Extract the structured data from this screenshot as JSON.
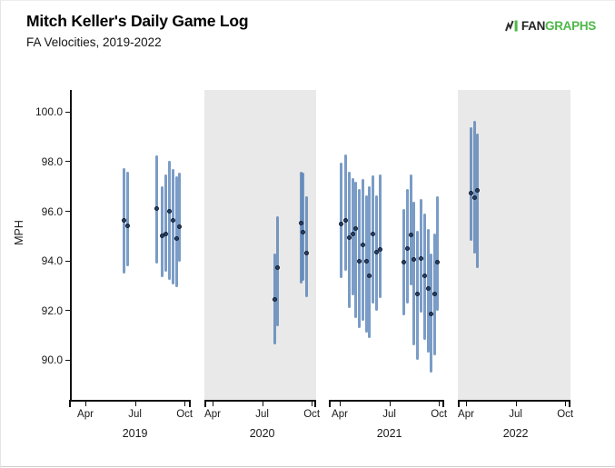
{
  "header": {
    "title": "Mitch Keller's Daily Game Log",
    "subtitle": "FA Velocities, 2019-2022",
    "logo": {
      "fan": "FAN",
      "graphs": "GRAPHS"
    }
  },
  "colors": {
    "bar": "rgba(70,118,176,0.72)",
    "dot_fill": "#2c3f61",
    "dot_border": "#0e1c33",
    "shaded_panel": "#e9e9e9",
    "axis": "#111111",
    "tick_text": "#1a1a1a",
    "logo_green": "#4db848",
    "logo_dark": "#2f2f2f"
  },
  "chart_data": {
    "type": "scatter",
    "title": "Mitch Keller's Daily Game Log",
    "subtitle": "FA Velocities, 2019-2022",
    "ylabel": "MPH",
    "ylim": [
      88.4,
      100.9
    ],
    "grid": false,
    "legend": "none",
    "yticks": [
      {
        "v": 100,
        "label": "100.0"
      },
      {
        "v": 98,
        "label": "98.0"
      },
      {
        "v": 96,
        "label": "96.0"
      },
      {
        "v": 94,
        "label": "94.0"
      },
      {
        "v": 92,
        "label": "92.0"
      },
      {
        "v": 90,
        "label": "90.0"
      }
    ],
    "month_ticks": [
      {
        "m": 4,
        "label": "Apr"
      },
      {
        "m": 7,
        "label": "Jul"
      },
      {
        "m": 10,
        "label": "Oct"
      }
    ],
    "series_meaning": "Each point: m = month position (4=Apr,7=Jul,10=Oct), avg = daily average FA velocity (dot), min/max = daily velocity range (bar), in MPH",
    "panels": [
      {
        "year": "2019",
        "shaded": false,
        "points": [
          {
            "m": 6.35,
            "avg": 95.65,
            "min": 93.5,
            "max": 97.75
          },
          {
            "m": 6.54,
            "avg": 95.42,
            "min": 93.8,
            "max": 97.6
          },
          {
            "m": 8.32,
            "avg": 96.1,
            "min": 93.9,
            "max": 98.25
          },
          {
            "m": 8.65,
            "avg": 95.0,
            "min": 93.35,
            "max": 97.0
          },
          {
            "m": 8.87,
            "avg": 95.1,
            "min": 93.55,
            "max": 97.5
          },
          {
            "m": 9.09,
            "avg": 96.0,
            "min": 93.25,
            "max": 98.05
          },
          {
            "m": 9.29,
            "avg": 95.62,
            "min": 93.05,
            "max": 97.7
          },
          {
            "m": 9.51,
            "avg": 94.9,
            "min": 92.95,
            "max": 97.4
          },
          {
            "m": 9.68,
            "avg": 95.38,
            "min": 93.95,
            "max": 97.55
          }
        ]
      },
      {
        "year": "2020",
        "shaded": true,
        "points": [
          {
            "m": 7.75,
            "avg": 92.45,
            "min": 90.65,
            "max": 94.3
          },
          {
            "m": 7.92,
            "avg": 93.72,
            "min": 91.35,
            "max": 95.8
          },
          {
            "m": 9.35,
            "avg": 95.52,
            "min": 93.1,
            "max": 97.6
          },
          {
            "m": 9.49,
            "avg": 95.15,
            "min": 93.2,
            "max": 97.55
          },
          {
            "m": 9.71,
            "avg": 94.3,
            "min": 92.55,
            "max": 96.6
          }
        ]
      },
      {
        "year": "2021",
        "shaded": false,
        "points": [
          {
            "m": 4.09,
            "avg": 95.5,
            "min": 93.3,
            "max": 97.95
          },
          {
            "m": 4.33,
            "avg": 95.65,
            "min": 93.6,
            "max": 98.3
          },
          {
            "m": 4.55,
            "avg": 94.95,
            "min": 92.1,
            "max": 97.6
          },
          {
            "m": 4.77,
            "avg": 95.1,
            "min": 92.6,
            "max": 97.35
          },
          {
            "m": 4.97,
            "avg": 95.3,
            "min": 91.7,
            "max": 97.2
          },
          {
            "m": 5.17,
            "avg": 94.0,
            "min": 91.3,
            "max": 96.9
          },
          {
            "m": 5.39,
            "avg": 94.65,
            "min": 91.6,
            "max": 97.3
          },
          {
            "m": 5.61,
            "avg": 94.0,
            "min": 91.1,
            "max": 96.65
          },
          {
            "m": 5.81,
            "avg": 93.4,
            "min": 90.9,
            "max": 97.0
          },
          {
            "m": 6.03,
            "avg": 95.1,
            "min": 92.3,
            "max": 97.45
          },
          {
            "m": 6.24,
            "avg": 94.35,
            "min": 92.0,
            "max": 96.65
          },
          {
            "m": 6.46,
            "avg": 94.45,
            "min": 92.5,
            "max": 97.5
          },
          {
            "m": 7.85,
            "avg": 93.95,
            "min": 91.8,
            "max": 96.1
          },
          {
            "m": 8.07,
            "avg": 94.5,
            "min": 92.3,
            "max": 96.9
          },
          {
            "m": 8.29,
            "avg": 95.05,
            "min": 93.0,
            "max": 97.5
          },
          {
            "m": 8.5,
            "avg": 94.05,
            "min": 90.6,
            "max": 96.4
          },
          {
            "m": 8.72,
            "avg": 92.65,
            "min": 90.0,
            "max": 95.2
          },
          {
            "m": 8.94,
            "avg": 94.1,
            "min": 91.9,
            "max": 96.5
          },
          {
            "m": 9.13,
            "avg": 93.4,
            "min": 90.8,
            "max": 95.9
          },
          {
            "m": 9.33,
            "avg": 92.9,
            "min": 90.3,
            "max": 95.3
          },
          {
            "m": 9.53,
            "avg": 91.85,
            "min": 89.5,
            "max": 94.3
          },
          {
            "m": 9.73,
            "avg": 92.65,
            "min": 90.2,
            "max": 95.1
          },
          {
            "m": 9.92,
            "avg": 93.95,
            "min": 92.0,
            "max": 96.6
          }
        ]
      },
      {
        "year": "2022",
        "shaded": true,
        "points": [
          {
            "m": 4.31,
            "avg": 96.75,
            "min": 94.8,
            "max": 99.4
          },
          {
            "m": 4.53,
            "avg": 96.55,
            "min": 94.3,
            "max": 99.65
          },
          {
            "m": 4.66,
            "avg": 96.85,
            "min": 93.7,
            "max": 99.15
          }
        ]
      }
    ]
  }
}
